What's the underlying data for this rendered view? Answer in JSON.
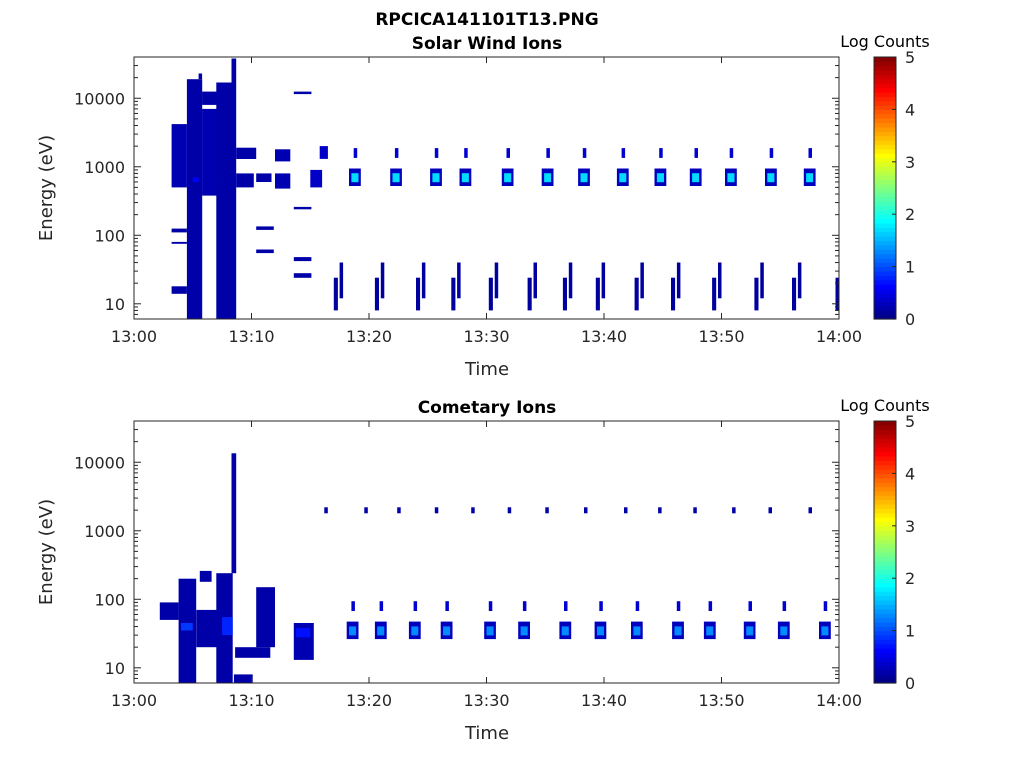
{
  "figure_title": "RPCICA141101T13.PNG",
  "chart_data": [
    {
      "type": "heatmap",
      "title": "Solar Wind Ions",
      "xlabel": "Time",
      "ylabel": "Energy (eV)",
      "xlim": [
        "13:00",
        "14:00"
      ],
      "xticks": [
        "13:00",
        "13:10",
        "13:20",
        "13:30",
        "13:40",
        "13:50",
        "14:00"
      ],
      "ylim": [
        6,
        40000
      ],
      "yscale": "log",
      "yticks": [
        "10",
        "100",
        "1000",
        "10000"
      ],
      "colorbar": {
        "label": "Log Counts",
        "range": [
          0,
          5
        ],
        "ticks": [
          "0",
          "1",
          "2",
          "3",
          "4",
          "5"
        ],
        "colormap": "jet"
      },
      "cells": [
        {
          "t": 3.2,
          "dt": 1.3,
          "e0": 500,
          "e1": 4200,
          "v": 0.25
        },
        {
          "t": 3.2,
          "dt": 1.3,
          "e0": 14,
          "e1": 18,
          "v": 0.2
        },
        {
          "t": 3.2,
          "dt": 1.3,
          "e0": 75,
          "e1": 80,
          "v": 0.2
        },
        {
          "t": 3.2,
          "dt": 1.3,
          "e0": 110,
          "e1": 125,
          "v": 0.2
        },
        {
          "t": 4.5,
          "dt": 1.3,
          "e0": 6,
          "e1": 19000,
          "v": 0.2
        },
        {
          "t": 5.0,
          "dt": 0.5,
          "e0": 600,
          "e1": 700,
          "v": 0.6
        },
        {
          "t": 5.5,
          "dt": 0.3,
          "e0": 19000,
          "e1": 23000,
          "v": 0.2
        },
        {
          "t": 5.8,
          "dt": 1.7,
          "e0": 380,
          "e1": 7000,
          "v": 0.25
        },
        {
          "t": 5.8,
          "dt": 1.7,
          "e0": 8000,
          "e1": 12500,
          "v": 0.2
        },
        {
          "t": 7.0,
          "dt": 0.5,
          "e0": 650,
          "e1": 720,
          "v": 0.55
        },
        {
          "t": 7.0,
          "dt": 1.5,
          "e0": 6,
          "e1": 17000,
          "v": 0.2
        },
        {
          "t": 8.3,
          "dt": 0.4,
          "e0": 6,
          "e1": 38000,
          "v": 0.2
        },
        {
          "t": 8.7,
          "dt": 1.7,
          "e0": 1300,
          "e1": 1900,
          "v": 0.2
        },
        {
          "t": 8.7,
          "dt": 1.5,
          "e0": 500,
          "e1": 800,
          "v": 0.2
        },
        {
          "t": 10.4,
          "dt": 1.3,
          "e0": 600,
          "e1": 800,
          "v": 0.2
        },
        {
          "t": 10.4,
          "dt": 1.5,
          "e0": 120,
          "e1": 135,
          "v": 0.2
        },
        {
          "t": 10.4,
          "dt": 1.5,
          "e0": 55,
          "e1": 62,
          "v": 0.2
        },
        {
          "t": 12.0,
          "dt": 1.3,
          "e0": 480,
          "e1": 800,
          "v": 0.25
        },
        {
          "t": 12.0,
          "dt": 1.3,
          "e0": 1200,
          "e1": 1800,
          "v": 0.25
        },
        {
          "t": 13.6,
          "dt": 1.5,
          "e0": 24,
          "e1": 28,
          "v": 0.2
        },
        {
          "t": 13.6,
          "dt": 1.5,
          "e0": 42,
          "e1": 48,
          "v": 0.2
        },
        {
          "t": 13.6,
          "dt": 1.5,
          "e0": 240,
          "e1": 260,
          "v": 0.2
        },
        {
          "t": 13.6,
          "dt": 1.5,
          "e0": 11500,
          "e1": 12500,
          "v": 0.2
        },
        {
          "t": 15.0,
          "dt": 1.0,
          "e0": 500,
          "e1": 900,
          "v": 0.35
        },
        {
          "t": 15.8,
          "dt": 0.7,
          "e0": 1300,
          "e1": 2000,
          "v": 0.35
        }
      ],
      "bursts": {
        "times": [
          18.8,
          22.3,
          25.7,
          28.2,
          31.8,
          35.2,
          38.3,
          41.6,
          44.8,
          47.8,
          50.8,
          54.2,
          57.5
        ],
        "center_energy": 700,
        "upper_energy": 1500,
        "peak_v": 1.7
      },
      "low_energy_streaks": {
        "times": [
          17.0,
          20.5,
          24.0,
          27.0,
          30.2,
          33.5,
          36.5,
          39.3,
          42.6,
          45.7,
          49.2,
          52.8,
          56.0,
          59.7
        ],
        "e0": 8,
        "e1": 40,
        "v": 0.15
      }
    },
    {
      "type": "heatmap",
      "title": "Cometary Ions",
      "xlabel": "Time",
      "ylabel": "Energy (eV)",
      "xlim": [
        "13:00",
        "14:00"
      ],
      "xticks": [
        "13:00",
        "13:10",
        "13:20",
        "13:30",
        "13:40",
        "13:50",
        "14:00"
      ],
      "ylim": [
        6,
        40000
      ],
      "yscale": "log",
      "yticks": [
        "10",
        "100",
        "1000",
        "10000"
      ],
      "colorbar": {
        "label": "Log Counts",
        "range": [
          0,
          5
        ],
        "ticks": [
          "0",
          "1",
          "2",
          "3",
          "4",
          "5"
        ],
        "colormap": "jet"
      },
      "cells": [
        {
          "t": 0.0,
          "dt": 3.8,
          "e0": 0,
          "e1": 0,
          "v": 0.0
        },
        {
          "t": 2.2,
          "dt": 1.6,
          "e0": 50,
          "e1": 90,
          "v": 0.2
        },
        {
          "t": 3.8,
          "dt": 1.5,
          "e0": 6,
          "e1": 200,
          "v": 0.2
        },
        {
          "t": 4.0,
          "dt": 1.0,
          "e0": 35,
          "e1": 45,
          "v": 0.9
        },
        {
          "t": 5.3,
          "dt": 2.0,
          "e0": 20,
          "e1": 70,
          "v": 0.2
        },
        {
          "t": 5.6,
          "dt": 1.0,
          "e0": 180,
          "e1": 260,
          "v": 0.2
        },
        {
          "t": 7.0,
          "dt": 1.4,
          "e0": 6,
          "e1": 240,
          "v": 0.2
        },
        {
          "t": 7.5,
          "dt": 0.9,
          "e0": 30,
          "e1": 55,
          "v": 0.8
        },
        {
          "t": 8.3,
          "dt": 0.4,
          "e0": 240,
          "e1": 13500,
          "v": 0.2
        },
        {
          "t": 8.5,
          "dt": 1.6,
          "e0": 6,
          "e1": 8,
          "v": 0.2
        },
        {
          "t": 8.6,
          "dt": 3.0,
          "e0": 14,
          "e1": 20,
          "v": 0.2
        },
        {
          "t": 10.4,
          "dt": 1.6,
          "e0": 20,
          "e1": 150,
          "v": 0.2
        },
        {
          "t": 13.6,
          "dt": 1.7,
          "e0": 13,
          "e1": 45,
          "v": 0.25
        },
        {
          "t": 13.8,
          "dt": 1.2,
          "e0": 28,
          "e1": 38,
          "v": 0.7
        }
      ],
      "bursts": {
        "times": [
          18.6,
          21.0,
          23.9,
          26.6,
          30.3,
          33.2,
          36.7,
          39.7,
          42.8,
          46.3,
          49.0,
          52.4,
          55.3,
          58.8
        ],
        "center_energy": 35,
        "upper_energy": 75,
        "peak_v": 1.3
      },
      "high_energy_dots": {
        "times": [
          16.2,
          19.6,
          22.4,
          25.6,
          28.7,
          31.8,
          35.0,
          38.3,
          41.7,
          44.6,
          47.6,
          50.9,
          54.0,
          57.4
        ],
        "e0": 1800,
        "e1": 2200,
        "v": 0.2
      }
    }
  ]
}
